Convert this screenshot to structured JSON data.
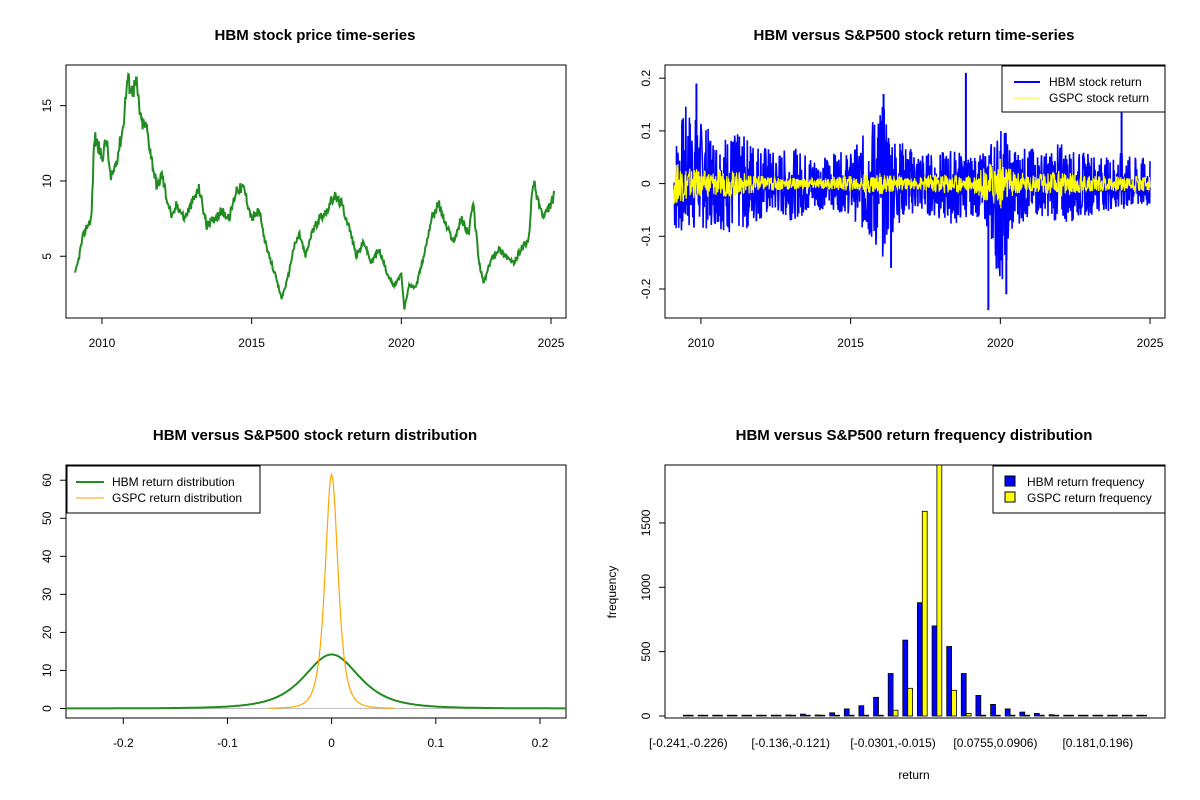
{
  "colors": {
    "hbm_price": "#228B22",
    "hbm_return": "#0000FF",
    "gspc_return": "#FFFF00",
    "hbm_density": "#228B22",
    "gspc_density": "#FFA500"
  },
  "chart_data": [
    {
      "type": "line",
      "title": "HBM stock price time-series",
      "xlabel": "",
      "ylabel": "",
      "xlim": [
        2008.8,
        2025.5
      ],
      "ylim": [
        0.9,
        17.7
      ],
      "x_ticks": [
        2010,
        2015,
        2020,
        2025
      ],
      "y_ticks": [
        5,
        10,
        15
      ],
      "series": [
        {
          "color": "#228B22",
          "x": [
            2009.1,
            2009.2,
            2009.35,
            2009.5,
            2009.65,
            2009.75,
            2009.85,
            2010.0,
            2010.15,
            2010.3,
            2010.5,
            2010.7,
            2010.85,
            2011.0,
            2011.15,
            2011.3,
            2011.5,
            2011.7,
            2011.85,
            2012.0,
            2012.15,
            2012.35,
            2012.5,
            2012.75,
            2013.0,
            2013.25,
            2013.5,
            2013.75,
            2014.0,
            2014.25,
            2014.5,
            2014.75,
            2015.0,
            2015.25,
            2015.5,
            2015.75,
            2016.0,
            2016.2,
            2016.4,
            2016.6,
            2016.8,
            2017.0,
            2017.25,
            2017.5,
            2017.75,
            2018.0,
            2018.25,
            2018.5,
            2018.75,
            2019.0,
            2019.25,
            2019.5,
            2019.75,
            2020.0,
            2020.1,
            2020.25,
            2020.5,
            2020.75,
            2021.0,
            2021.25,
            2021.5,
            2021.75,
            2022.0,
            2022.25,
            2022.4,
            2022.6,
            2022.75,
            2023.0,
            2023.25,
            2023.5,
            2023.75,
            2024.0,
            2024.25,
            2024.4,
            2024.6,
            2024.75,
            2025.0,
            2025.1
          ],
          "y": [
            3.8,
            4.6,
            6.2,
            7.0,
            7.5,
            13.0,
            12.5,
            11.5,
            12.8,
            10.0,
            11.5,
            13.5,
            16.8,
            16.0,
            16.5,
            14.0,
            13.5,
            11.0,
            9.5,
            10.5,
            9.0,
            7.5,
            8.5,
            7.5,
            8.5,
            9.5,
            7.0,
            7.5,
            8.0,
            7.5,
            9.5,
            9.5,
            7.5,
            8.0,
            5.5,
            4.0,
            2.2,
            3.5,
            5.5,
            6.5,
            5.0,
            6.5,
            7.5,
            8.0,
            9.0,
            8.5,
            7.0,
            5.0,
            6.0,
            4.5,
            5.5,
            4.0,
            3.0,
            3.8,
            1.5,
            3.0,
            3.0,
            5.0,
            7.5,
            8.5,
            7.0,
            6.0,
            7.5,
            6.5,
            8.5,
            4.5,
            3.2,
            4.8,
            5.5,
            5.0,
            4.5,
            5.5,
            6.0,
            10.0,
            8.5,
            7.5,
            8.5,
            9.0
          ]
        }
      ]
    },
    {
      "type": "line",
      "title": "HBM versus S&P500 stock return time-series",
      "xlabel": "",
      "ylabel": "",
      "xlim": [
        2008.8,
        2025.5
      ],
      "ylim": [
        -0.255,
        0.225
      ],
      "x_ticks": [
        2010,
        2015,
        2020,
        2025
      ],
      "y_ticks": [
        -0.2,
        -0.1,
        0.0,
        0.1,
        0.2
      ],
      "legend": "top-right",
      "series": [
        {
          "name": "HBM stock return",
          "color": "#0000FF",
          "type": "return-envelope",
          "x": [
            2009.1,
            2009.5,
            2010.0,
            2010.5,
            2011.0,
            2011.5,
            2012.0,
            2012.5,
            2013.0,
            2013.5,
            2014.0,
            2014.5,
            2015.0,
            2015.5,
            2016.0,
            2016.5,
            2017.0,
            2017.5,
            2018.0,
            2018.5,
            2019.0,
            2019.5,
            2020.0,
            2020.5,
            2021.0,
            2021.5,
            2022.0,
            2022.5,
            2023.0,
            2023.5,
            2024.0,
            2024.5,
            2025.0
          ],
          "upper": [
            0.08,
            0.15,
            0.12,
            0.09,
            0.1,
            0.09,
            0.08,
            0.06,
            0.07,
            0.06,
            0.05,
            0.06,
            0.06,
            0.1,
            0.16,
            0.09,
            0.07,
            0.06,
            0.06,
            0.07,
            0.05,
            0.06,
            0.12,
            0.07,
            0.07,
            0.06,
            0.08,
            0.06,
            0.06,
            0.05,
            0.06,
            0.05,
            0.05
          ],
          "lower": [
            -0.1,
            -0.1,
            -0.09,
            -0.08,
            -0.1,
            -0.09,
            -0.07,
            -0.06,
            -0.07,
            -0.06,
            -0.05,
            -0.05,
            -0.06,
            -0.1,
            -0.15,
            -0.08,
            -0.06,
            -0.06,
            -0.07,
            -0.08,
            -0.06,
            -0.07,
            -0.2,
            -0.08,
            -0.07,
            -0.06,
            -0.08,
            -0.07,
            -0.06,
            -0.05,
            -0.06,
            -0.05,
            -0.05
          ],
          "spikes": [
            [
              2009.85,
              0.19
            ],
            [
              2016.1,
              0.17
            ],
            [
              2018.85,
              0.21
            ],
            [
              2019.6,
              -0.24
            ],
            [
              2020.2,
              -0.21
            ],
            [
              2024.05,
              0.14
            ],
            [
              2016.35,
              -0.16
            ]
          ]
        },
        {
          "name": "GSPC stock return",
          "color": "#FFFF00",
          "type": "return-envelope",
          "x": [
            2009.1,
            2010.0,
            2011.0,
            2012.0,
            2013.0,
            2014.0,
            2015.0,
            2016.0,
            2017.0,
            2018.0,
            2019.0,
            2020.0,
            2020.3,
            2021.0,
            2022.0,
            2023.0,
            2024.0,
            2025.0
          ],
          "upper": [
            0.04,
            0.025,
            0.025,
            0.015,
            0.012,
            0.01,
            0.015,
            0.02,
            0.01,
            0.02,
            0.015,
            0.05,
            0.03,
            0.015,
            0.025,
            0.015,
            0.015,
            0.015
          ],
          "lower": [
            -0.04,
            -0.025,
            -0.025,
            -0.015,
            -0.012,
            -0.01,
            -0.015,
            -0.02,
            -0.01,
            -0.02,
            -0.015,
            -0.05,
            -0.03,
            -0.015,
            -0.025,
            -0.015,
            -0.015,
            -0.015
          ]
        }
      ]
    },
    {
      "type": "line",
      "title": "HBM versus S&P500 stock return distribution",
      "xlabel": "",
      "ylabel": "",
      "xlim": [
        -0.255,
        0.225
      ],
      "ylim": [
        -2.5,
        64
      ],
      "x_ticks": [
        -0.2,
        -0.1,
        0.0,
        0.1,
        0.2
      ],
      "y_ticks": [
        0,
        10,
        20,
        30,
        40,
        50,
        60
      ],
      "legend": "top-left",
      "series": [
        {
          "name": "HBM return distribution",
          "color": "#228B22",
          "sigma": 0.028,
          "peak": 14.2,
          "range": [
            -0.255,
            0.225
          ]
        },
        {
          "name": "GSPC return distribution",
          "color": "#FFA500",
          "sigma": 0.0065,
          "peak": 61.5,
          "range": [
            -0.06,
            0.06
          ]
        }
      ]
    },
    {
      "type": "bar",
      "title": "HBM versus S&P500 return frequency distribution",
      "xlabel": "return",
      "ylabel": "frequency",
      "ylim": [
        0,
        1950
      ],
      "y_ticks": [
        0,
        500,
        1000,
        1500
      ],
      "legend": "top-right",
      "x_tick_labels": [
        {
          "index": 0,
          "label": "[-0.241,-0.226)"
        },
        {
          "index": 7,
          "label": "[-0.136,-0.121)"
        },
        {
          "index": 14,
          "label": "[-0.0301,-0.015)"
        },
        {
          "index": 21,
          "label": "[0.0755,0.0906)"
        },
        {
          "index": 28,
          "label": "[0.181,0.196)"
        }
      ],
      "series": [
        {
          "name": "HBM return frequency",
          "color": "#0000FF",
          "values": [
            1,
            1,
            0,
            1,
            2,
            3,
            4,
            8,
            15,
            8,
            25,
            55,
            80,
            145,
            330,
            590,
            880,
            700,
            540,
            330,
            160,
            90,
            55,
            30,
            20,
            10,
            5,
            4,
            3,
            2,
            1,
            1
          ]
        },
        {
          "name": "GSPC return frequency",
          "color": "#FFFF00",
          "values": [
            0,
            0,
            0,
            0,
            0,
            0,
            0,
            0,
            0,
            0,
            0,
            0,
            0,
            5,
            45,
            215,
            1590,
            1950,
            200,
            20,
            5,
            0,
            0,
            0,
            0,
            0,
            0,
            0,
            0,
            0,
            0,
            0
          ]
        }
      ]
    }
  ]
}
